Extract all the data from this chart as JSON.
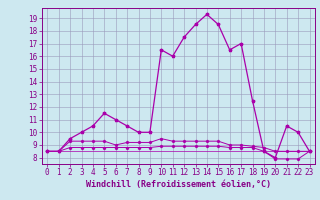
{
  "xlabel": "Windchill (Refroidissement éolien,°C)",
  "background_color": "#cde8f0",
  "grid_color": "#9999bb",
  "line_color": "#aa00aa",
  "xlim": [
    -0.5,
    23.5
  ],
  "ylim": [
    7.5,
    19.8
  ],
  "yticks": [
    8,
    9,
    10,
    11,
    12,
    13,
    14,
    15,
    16,
    17,
    18,
    19
  ],
  "xticks": [
    0,
    1,
    2,
    3,
    4,
    5,
    6,
    7,
    8,
    9,
    10,
    11,
    12,
    13,
    14,
    15,
    16,
    17,
    18,
    19,
    20,
    21,
    22,
    23
  ],
  "series1_x": [
    0,
    1,
    2,
    3,
    4,
    5,
    6,
    7,
    8,
    9,
    10,
    11,
    12,
    13,
    14,
    15,
    16,
    17,
    18,
    19,
    20,
    21,
    22,
    23
  ],
  "series1_y": [
    8.5,
    8.5,
    9.5,
    10.0,
    10.5,
    11.5,
    11.0,
    10.5,
    10.0,
    10.0,
    16.5,
    16.0,
    17.5,
    18.5,
    19.3,
    18.5,
    16.5,
    17.0,
    12.5,
    8.5,
    8.0,
    10.5,
    10.0,
    8.5
  ],
  "series2_x": [
    0,
    1,
    2,
    3,
    4,
    5,
    6,
    7,
    8,
    9,
    10,
    11,
    12,
    13,
    14,
    15,
    16,
    17,
    18,
    19,
    20,
    21,
    22,
    23
  ],
  "series2_y": [
    8.5,
    8.5,
    9.3,
    9.3,
    9.3,
    9.3,
    9.0,
    9.2,
    9.2,
    9.2,
    9.5,
    9.3,
    9.3,
    9.3,
    9.3,
    9.3,
    9.0,
    9.0,
    8.9,
    8.8,
    8.5,
    8.5,
    8.5,
    8.5
  ],
  "series3_x": [
    0,
    1,
    2,
    3,
    4,
    5,
    6,
    7,
    8,
    9,
    10,
    11,
    12,
    13,
    14,
    15,
    16,
    17,
    18,
    19,
    20,
    21,
    22,
    23
  ],
  "series3_y": [
    8.5,
    8.5,
    8.8,
    8.8,
    8.8,
    8.8,
    8.8,
    8.8,
    8.8,
    8.8,
    8.9,
    8.9,
    8.9,
    8.9,
    8.9,
    8.9,
    8.8,
    8.8,
    8.8,
    8.5,
    7.9,
    7.9,
    7.9,
    8.5
  ],
  "series4_x": [
    0,
    1,
    2,
    3,
    4,
    5,
    6,
    7,
    8,
    9,
    10,
    11,
    12,
    13,
    14,
    15,
    16,
    17,
    18,
    19,
    20,
    21,
    22,
    23
  ],
  "series4_y": [
    8.5,
    8.5,
    8.5,
    8.5,
    8.5,
    8.5,
    8.5,
    8.5,
    8.5,
    8.5,
    8.5,
    8.5,
    8.5,
    8.5,
    8.5,
    8.5,
    8.5,
    8.5,
    8.5,
    8.5,
    8.5,
    8.5,
    8.5,
    8.5
  ],
  "tick_fontsize": 5.5,
  "xlabel_fontsize": 6.0,
  "tick_color": "#880088",
  "xlabel_color": "#880088"
}
